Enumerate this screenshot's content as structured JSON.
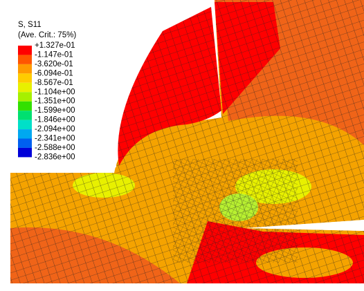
{
  "legend": {
    "title": "S, S11",
    "subtitle": "(Ave. Crit.: 75%)",
    "levels": [
      "+1.327e-01",
      "-1.147e-01",
      "-3.620e-01",
      "-6.094e-01",
      "-8.567e-01",
      "-1.104e+00",
      "-1.351e+00",
      "-1.599e+00",
      "-1.846e+00",
      "-2.094e+00",
      "-2.341e+00",
      "-2.588e+00",
      "-2.836e+00"
    ],
    "colors": [
      "#ff0000",
      "#ff5500",
      "#ff9a00",
      "#ffcc00",
      "#e8f000",
      "#a6f000",
      "#33e000",
      "#00e070",
      "#00e0c8",
      "#00a8f0",
      "#0060f0",
      "#0000d8"
    ]
  }
}
